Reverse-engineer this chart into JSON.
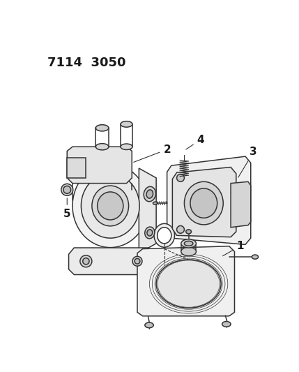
{
  "title_text": "7114  3050",
  "bg_color": "#ffffff",
  "line_color": "#333333",
  "label_color": "#1a1a1a",
  "part_label_fontsize": 11
}
